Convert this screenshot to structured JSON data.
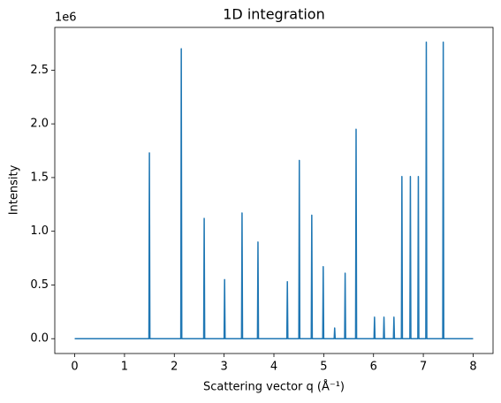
{
  "chart_data": {
    "type": "line",
    "title": "1D integration",
    "x_label": "Scattering vector q (Å⁻¹)",
    "y_label": "Intensity",
    "y_offset_label": "1e6",
    "x": [
      0,
      1.49,
      1.5,
      1.51,
      2.13,
      2.14,
      2.15,
      2.59,
      2.6,
      2.61,
      3.0,
      3.01,
      3.02,
      3.35,
      3.36,
      3.37,
      3.67,
      3.68,
      3.69,
      4.26,
      4.27,
      4.28,
      4.5,
      4.51,
      4.52,
      4.75,
      4.76,
      4.77,
      4.98,
      4.99,
      5.0,
      5.21,
      5.22,
      5.23,
      5.42,
      5.43,
      5.44,
      5.64,
      5.65,
      5.66,
      6.01,
      6.02,
      6.03,
      6.2,
      6.21,
      6.22,
      6.4,
      6.41,
      6.42,
      6.56,
      6.57,
      6.58,
      6.73,
      6.74,
      6.75,
      6.89,
      6.9,
      6.91,
      7.05,
      7.06,
      7.07,
      7.39,
      7.4,
      7.41,
      8
    ],
    "series": [
      {
        "color": "#1f77b4",
        "values": [
          0,
          0,
          1.73,
          0,
          0,
          2.7,
          0,
          0,
          1.12,
          0,
          0,
          0.55,
          0,
          0,
          1.17,
          0,
          0,
          0.9,
          0,
          0,
          0.53,
          0,
          0,
          1.66,
          0,
          0,
          1.15,
          0,
          0,
          0.67,
          0,
          0,
          0.1,
          0,
          0,
          0.61,
          0,
          0,
          1.95,
          0,
          0,
          0.2,
          0,
          0,
          0.2,
          0,
          0,
          0.2,
          0,
          0,
          1.51,
          0,
          0,
          1.51,
          0,
          0,
          1.51,
          0,
          0,
          2.76,
          0,
          0,
          2.76,
          0,
          0
        ]
      }
    ],
    "xlim": [
      -0.4,
      8.4
    ],
    "xticks": [
      0,
      1,
      2,
      3,
      4,
      5,
      6,
      7,
      8
    ],
    "ylim": [
      -0.138,
      2.898
    ],
    "yticks": [
      {
        "value": 0,
        "label": "0.0"
      },
      0.5,
      {
        "value": 1,
        "label": "1.0"
      },
      1.5,
      {
        "value": 2,
        "label": "2.0"
      },
      2.5
    ],
    "grid": false
  }
}
